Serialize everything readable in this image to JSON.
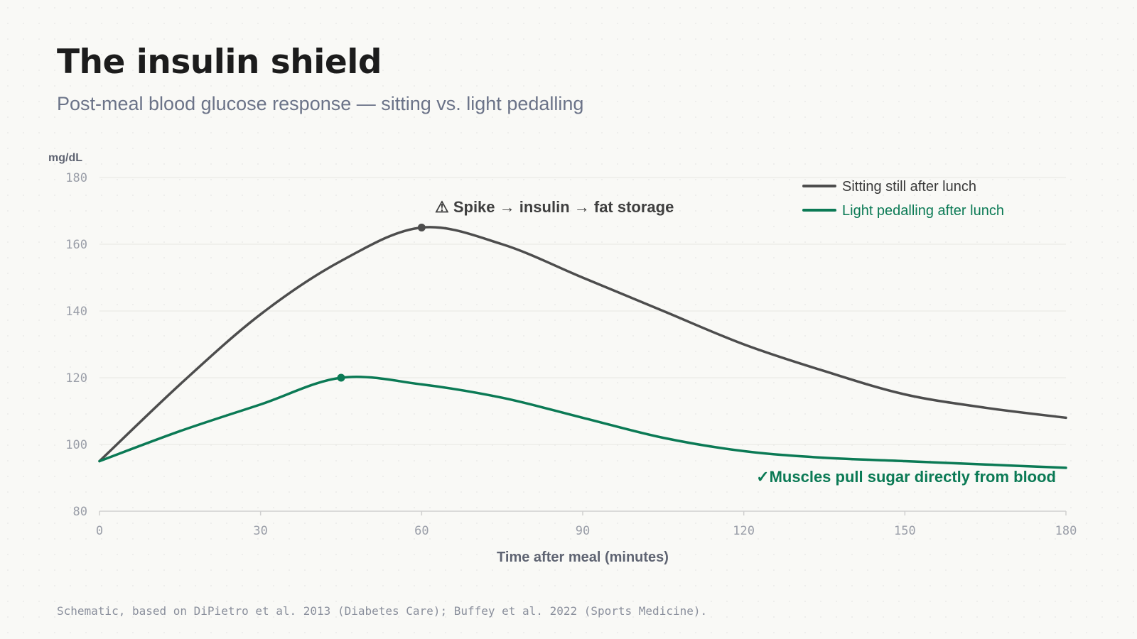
{
  "header": {
    "title": "The insulin shield",
    "subtitle": "Post-meal blood glucose response — sitting vs. light pedalling"
  },
  "footer": {
    "note": "Schematic, based on DiPietro et al. 2013 (Diabetes Care); Buffey et al. 2022 (Sports Medicine)."
  },
  "colors": {
    "sitting": "#4d4d4d",
    "pedalling": "#0b7a55",
    "grid": "#e7e7e2",
    "axis": "#cfcfcf"
  },
  "chart_data": {
    "type": "line",
    "title": "The insulin shield",
    "subtitle": "Post-meal blood glucose response — sitting vs. light pedalling",
    "xlabel": "Time after meal (minutes)",
    "ylabel": "mg/dL",
    "xlim": [
      0,
      180
    ],
    "ylim": [
      80,
      180
    ],
    "xticks": [
      0,
      30,
      60,
      90,
      120,
      150,
      180
    ],
    "yticks": [
      80,
      100,
      120,
      140,
      160,
      180
    ],
    "grid": "horizontal",
    "legend_position": "top-right",
    "series": [
      {
        "name": "Sitting still after lunch",
        "color": "#4d4d4d",
        "x": [
          0,
          15,
          30,
          45,
          60,
          75,
          90,
          105,
          120,
          135,
          150,
          165,
          180
        ],
        "y": [
          95,
          118,
          139,
          155,
          165,
          160,
          150,
          140,
          130,
          122,
          115,
          111,
          108
        ],
        "peak": {
          "x": 60,
          "y": 165
        }
      },
      {
        "name": "Light pedalling after lunch",
        "color": "#0b7a55",
        "x": [
          0,
          15,
          30,
          45,
          60,
          75,
          90,
          105,
          120,
          135,
          150,
          165,
          180
        ],
        "y": [
          95,
          104,
          112,
          120,
          118,
          114,
          108,
          102,
          98,
          96,
          95,
          94,
          93
        ],
        "peak": {
          "x": 45,
          "y": 120
        }
      }
    ],
    "annotations": [
      {
        "text": "⚠ Spike → insulin → fat storage",
        "series": 0
      },
      {
        "text": "✓Muscles pull sugar directly from blood",
        "series": 1
      }
    ]
  }
}
